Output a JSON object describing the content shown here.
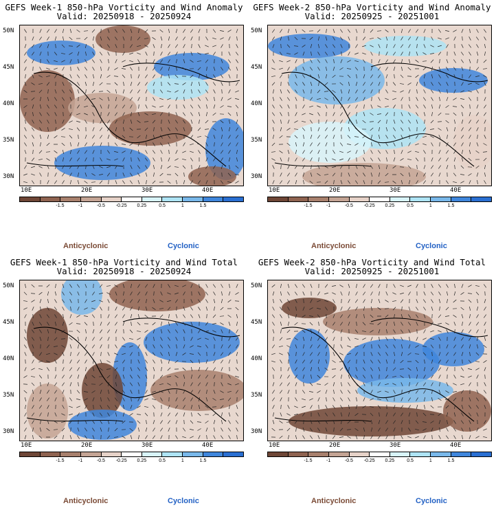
{
  "panels": [
    {
      "title_line1": "GEFS Week-1 850-hPa Vorticity and Wind Anomaly",
      "title_line2": "Valid: 20250918 - 20250924"
    },
    {
      "title_line1": "GEFS Week-2 850-hPa Vorticity and Wind Anomaly",
      "title_line2": "Valid: 20250925 - 20251001"
    },
    {
      "title_line1": "GEFS Week-1 850-hPa Vorticity and Wind Total",
      "title_line2": "Valid: 20250918 - 20250924"
    },
    {
      "title_line1": "GEFS Week-2 850-hPa Vorticity and Wind Total",
      "title_line2": "Valid: 20250925 - 20251001"
    }
  ],
  "lat_labels": [
    "50N",
    "45N",
    "40N",
    "35N",
    "30N"
  ],
  "lon_labels": [
    "10E",
    "20E",
    "30E",
    "40E"
  ],
  "colorbar": {
    "labels": [
      "-1.5",
      "-1",
      "-0.5",
      "-0.25",
      "0.25",
      "0.5",
      "1",
      "1.5"
    ],
    "colors": [
      "#6e4636",
      "#8f6350",
      "#a8806d",
      "#c4a494",
      "#e6d2c8",
      "#ffffff",
      "#d8f4fa",
      "#aee4f5",
      "#79b8ea",
      "#3f86dc",
      "#2a6fd2"
    ]
  },
  "legend": {
    "anticyclonic": "Anticyclonic",
    "cyclonic": "Cyclonic"
  },
  "colors": {
    "anticyclonic": "#7a4a35",
    "cyclonic": "#2160c4"
  }
}
